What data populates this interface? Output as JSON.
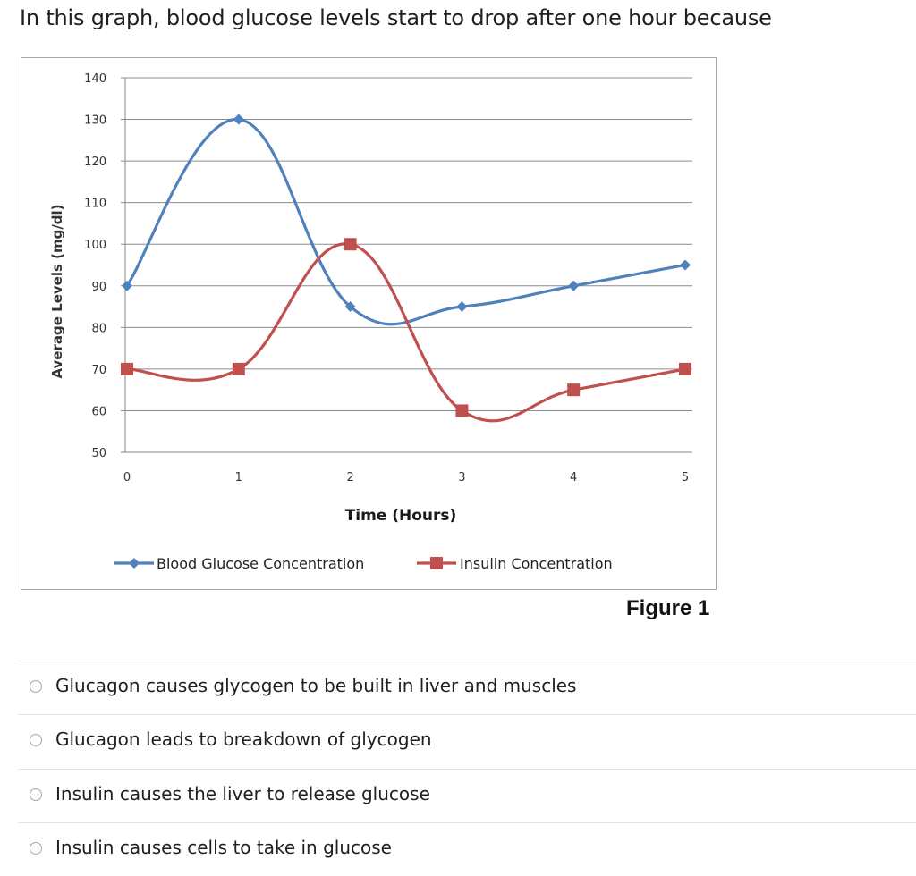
{
  "question": {
    "text": "In this graph, blood glucose levels start to drop after one hour because"
  },
  "figure_caption": "Figure 1",
  "options": [
    {
      "label": "Glucagon causes glycogen to be built in liver and muscles"
    },
    {
      "label": "Glucagon leads to breakdown of glycogen"
    },
    {
      "label": "Insulin causes the liver to release glucose"
    },
    {
      "label": "Insulin causes cells to take in glucose"
    }
  ],
  "chart_data": {
    "type": "line",
    "xlabel": "Time (Hours)",
    "ylabel": "Average Levels (mg/dl)",
    "x": [
      0,
      1,
      2,
      3,
      4,
      5
    ],
    "x_ticks": [
      "0",
      "1",
      "2",
      "3",
      "4",
      "5"
    ],
    "ylim": [
      50,
      140
    ],
    "y_ticks": [
      "140",
      "130",
      "120",
      "110",
      "100",
      "90",
      "80",
      "70",
      "60",
      "50"
    ],
    "grid": true,
    "legend_position": "bottom",
    "series": [
      {
        "name": "Blood Glucose Concentration",
        "values": [
          90,
          130,
          85,
          85,
          90,
          95
        ],
        "color": "#4f81bd",
        "marker": "diamond"
      },
      {
        "name": "Insulin Concentration",
        "values": [
          70,
          70,
          100,
          60,
          65,
          70
        ],
        "color": "#c0504d",
        "marker": "square"
      }
    ]
  }
}
